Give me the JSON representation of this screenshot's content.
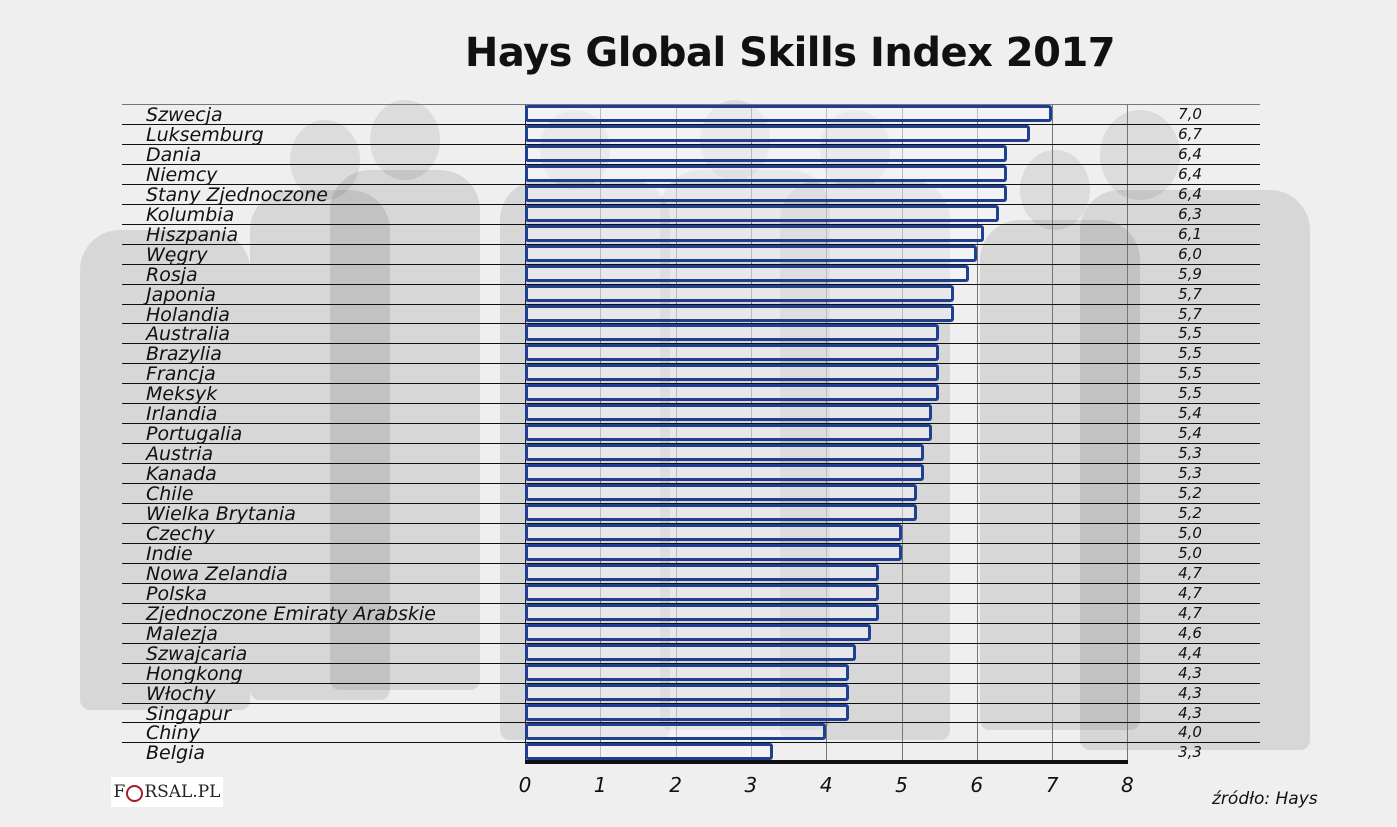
{
  "title": "Hays Global Skills Index 2017",
  "source": "źródło: Hays",
  "logo": {
    "text_left": "F",
    "text_right": "RSAL.PL",
    "full": "FORSAL.PL"
  },
  "colors": {
    "bar_border": "#1f3f93",
    "background": "#efefef",
    "text": "#111111"
  },
  "x_axis": {
    "ticks": [
      "0",
      "1",
      "2",
      "3",
      "4",
      "5",
      "6",
      "7",
      "8"
    ]
  },
  "rows": [
    {
      "country": "Szwecja",
      "value": 7.0,
      "display": "7,0"
    },
    {
      "country": "Luksemburg",
      "value": 6.7,
      "display": "6,7"
    },
    {
      "country": "Dania",
      "value": 6.4,
      "display": "6,4"
    },
    {
      "country": "Niemcy",
      "value": 6.4,
      "display": "6,4"
    },
    {
      "country": "Stany Zjednoczone",
      "value": 6.4,
      "display": "6,4"
    },
    {
      "country": "Kolumbia",
      "value": 6.3,
      "display": "6,3"
    },
    {
      "country": "Hiszpania",
      "value": 6.1,
      "display": "6,1"
    },
    {
      "country": "Węgry",
      "value": 6.0,
      "display": "6,0"
    },
    {
      "country": "Rosja",
      "value": 5.9,
      "display": "5,9"
    },
    {
      "country": "Japonia",
      "value": 5.7,
      "display": "5,7"
    },
    {
      "country": "Holandia",
      "value": 5.7,
      "display": "5,7"
    },
    {
      "country": "Australia",
      "value": 5.5,
      "display": "5,5"
    },
    {
      "country": "Brazylia",
      "value": 5.5,
      "display": "5,5"
    },
    {
      "country": "Francja",
      "value": 5.5,
      "display": "5,5"
    },
    {
      "country": "Meksyk",
      "value": 5.5,
      "display": "5,5"
    },
    {
      "country": "Irlandia",
      "value": 5.4,
      "display": "5,4"
    },
    {
      "country": "Portugalia",
      "value": 5.4,
      "display": "5,4"
    },
    {
      "country": "Austria",
      "value": 5.3,
      "display": "5,3"
    },
    {
      "country": "Kanada",
      "value": 5.3,
      "display": "5,3"
    },
    {
      "country": "Chile",
      "value": 5.2,
      "display": "5,2"
    },
    {
      "country": "Wielka Brytania",
      "value": 5.2,
      "display": "5,2"
    },
    {
      "country": "Czechy",
      "value": 5.0,
      "display": "5,0"
    },
    {
      "country": "Indie",
      "value": 5.0,
      "display": "5,0"
    },
    {
      "country": "Nowa Zelandia",
      "value": 4.7,
      "display": "4,7"
    },
    {
      "country": "Polska",
      "value": 4.7,
      "display": "4,7"
    },
    {
      "country": "Zjednoczone Emiraty Arabskie",
      "value": 4.7,
      "display": "4,7"
    },
    {
      "country": "Malezja",
      "value": 4.6,
      "display": "4,6"
    },
    {
      "country": "Szwajcaria",
      "value": 4.4,
      "display": "4,4"
    },
    {
      "country": "Hongkong",
      "value": 4.3,
      "display": "4,3"
    },
    {
      "country": "Włochy",
      "value": 4.3,
      "display": "4,3"
    },
    {
      "country": "Singapur",
      "value": 4.3,
      "display": "4,3"
    },
    {
      "country": "Chiny",
      "value": 4.0,
      "display": "4,0"
    },
    {
      "country": "Belgia",
      "value": 3.3,
      "display": "3,3"
    }
  ],
  "chart_data": {
    "type": "bar",
    "orientation": "horizontal",
    "title": "Hays Global Skills Index 2017",
    "xlabel": "",
    "ylabel": "",
    "xlim": [
      0,
      8
    ],
    "x_ticks": [
      0,
      1,
      2,
      3,
      4,
      5,
      6,
      7,
      8
    ],
    "grid": true,
    "legend": null,
    "annotation": "źródło: Hays",
    "categories": [
      "Szwecja",
      "Luksemburg",
      "Dania",
      "Niemcy",
      "Stany Zjednoczone",
      "Kolumbia",
      "Hiszpania",
      "Węgry",
      "Rosja",
      "Japonia",
      "Holandia",
      "Australia",
      "Brazylia",
      "Francja",
      "Meksyk",
      "Irlandia",
      "Portugalia",
      "Austria",
      "Kanada",
      "Chile",
      "Wielka Brytania",
      "Czechy",
      "Indie",
      "Nowa Zelandia",
      "Polska",
      "Zjednoczone Emiraty Arabskie",
      "Malezja",
      "Szwajcaria",
      "Hongkong",
      "Włochy",
      "Singapur",
      "Chiny",
      "Belgia"
    ],
    "values": [
      7.0,
      6.7,
      6.4,
      6.4,
      6.4,
      6.3,
      6.1,
      6.0,
      5.9,
      5.7,
      5.7,
      5.5,
      5.5,
      5.5,
      5.5,
      5.4,
      5.4,
      5.3,
      5.3,
      5.2,
      5.2,
      5.0,
      5.0,
      4.7,
      4.7,
      4.7,
      4.6,
      4.4,
      4.3,
      4.3,
      4.3,
      4.0,
      3.3
    ]
  }
}
